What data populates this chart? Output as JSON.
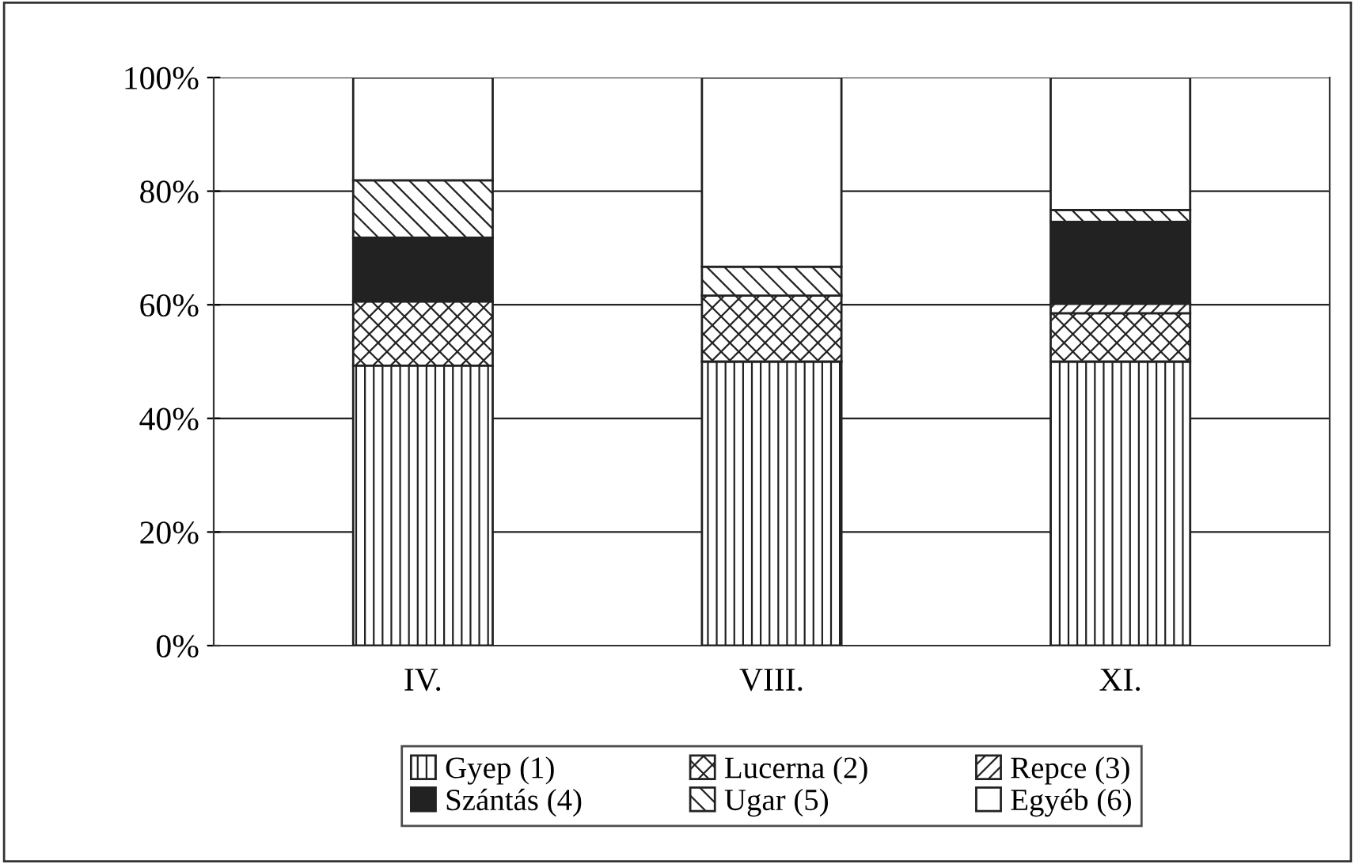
{
  "chart_data": {
    "type": "bar",
    "stacked": true,
    "categories": [
      "IV.",
      "VIII.",
      "XI."
    ],
    "series": [
      {
        "name": "Gyep (1)",
        "color": "#222222",
        "values": [
          49.3,
          50,
          50
        ]
      },
      {
        "name": "Lucerna (2)",
        "color": "#222222",
        "values": [
          11.3,
          11.6,
          8.5
        ]
      },
      {
        "name": "Repce (3)",
        "color": "#222222",
        "values": [
          0,
          0,
          1.7
        ]
      },
      {
        "name": "Szántás (4)",
        "color": "#222222",
        "values": [
          11.2,
          0,
          14.4
        ]
      },
      {
        "name": "Ugar (5)",
        "color": "#222222",
        "values": [
          10.1,
          5.1,
          2.1
        ]
      },
      {
        "name": "Egyéb (6)",
        "color": "#ffffff",
        "values": [
          18.1,
          33.3,
          23.3
        ]
      }
    ],
    "ylim": [
      0,
      100
    ],
    "yticks": [
      {
        "value": 0,
        "label": "0%"
      },
      {
        "value": 20,
        "label": "20%"
      },
      {
        "value": 40,
        "label": "40%"
      },
      {
        "value": 60,
        "label": "60%"
      },
      {
        "value": 80,
        "label": "80%"
      },
      {
        "value": 100,
        "label": "100%"
      }
    ],
    "grid": "y",
    "legend": "bottom"
  }
}
